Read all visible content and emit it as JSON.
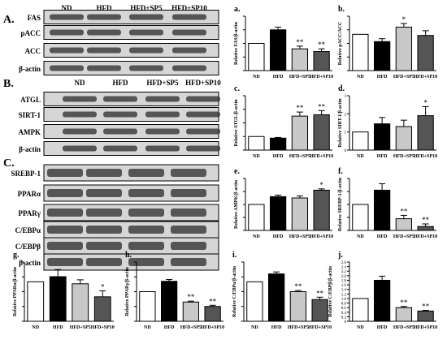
{
  "panel_letters": {
    "A": "A.",
    "B": "B.",
    "C": "C."
  },
  "lane_labels": [
    "ND",
    "HFD",
    "HFD+SP5",
    "HFD+SP10"
  ],
  "blots": {
    "A": [
      "FAS",
      "pACC",
      "ACC",
      "β-actin"
    ],
    "B": [
      "ATGL",
      "SIRT-1",
      "AMPK",
      "β-actin"
    ],
    "C": [
      "SREBP-1",
      "PPARα",
      "PPARγ",
      "C/EBPα",
      "C/EBPβ",
      "β-actin"
    ]
  },
  "colors": {
    "ND": "#ffffff",
    "HFD": "#000000",
    "HFD+SP5": "#c8c8c8",
    "HFD+SP10": "#555555",
    "blot_bg": "#d6d6d6",
    "band": "#2a2a2a"
  },
  "chart_data": [
    {
      "letter": "a.",
      "type": "bar",
      "ylabel": "Relative FAS/β-actin",
      "categories": [
        "ND",
        "HFD",
        "HFD+SP5",
        "HFD+SP10"
      ],
      "values": [
        1.0,
        1.5,
        0.8,
        0.7
      ],
      "errors": [
        0.0,
        0.1,
        0.1,
        0.1
      ],
      "significance": [
        "",
        "",
        "**",
        "**"
      ],
      "ylim": [
        0,
        2
      ],
      "yticks": []
    },
    {
      "letter": "b.",
      "type": "bar",
      "ylabel": "Relative pACC/ACC",
      "categories": [
        "ND",
        "HFD",
        "HFD+SP5",
        "HFD+SP10"
      ],
      "values": [
        1.0,
        0.8,
        1.2,
        0.97
      ],
      "errors": [
        0.0,
        0.08,
        0.1,
        0.13
      ],
      "significance": [
        "",
        "",
        "*",
        ""
      ],
      "ylim": [
        0,
        1.5
      ],
      "yticks": []
    },
    {
      "letter": "c.",
      "type": "bar",
      "ylabel": "Relative ATGL/β-actin",
      "categories": [
        "ND",
        "HFD",
        "HFD+SP5",
        "HFD+SP10"
      ],
      "values": [
        1.0,
        0.88,
        2.5,
        2.6
      ],
      "errors": [
        0.0,
        0.05,
        0.3,
        0.3
      ],
      "significance": [
        "",
        "",
        "**",
        "**"
      ],
      "ylim": [
        0,
        4
      ],
      "yticks": []
    },
    {
      "letter": "d.",
      "type": "bar",
      "ylabel": "Relative SIRT-1/β-actin",
      "categories": [
        "ND",
        "HFD",
        "HFD+SP5",
        "HFD+SP10"
      ],
      "values": [
        1.0,
        1.45,
        1.3,
        1.9
      ],
      "errors": [
        0.0,
        0.35,
        0.35,
        0.5
      ],
      "significance": [
        "",
        "",
        "",
        "*"
      ],
      "ylim": [
        0,
        3
      ],
      "yticks": [
        "0",
        "1",
        "2",
        "3"
      ]
    },
    {
      "letter": "e.",
      "type": "bar",
      "ylabel": "Relative AMPK/β-actin",
      "categories": [
        "ND",
        "HFD",
        "HFD+SP5",
        "HFD+SP10"
      ],
      "values": [
        1.0,
        1.3,
        1.25,
        1.55
      ],
      "errors": [
        0.0,
        0.06,
        0.08,
        0.05
      ],
      "significance": [
        "",
        "",
        "",
        "*"
      ],
      "ylim": [
        0,
        2
      ],
      "yticks": []
    },
    {
      "letter": "f.",
      "type": "bar",
      "ylabel": "Relative SREBP-1/β-actin",
      "categories": [
        "ND",
        "HFD",
        "HFD+SP5",
        "HFD+SP10"
      ],
      "values": [
        1.0,
        1.55,
        0.45,
        0.15
      ],
      "errors": [
        0.0,
        0.25,
        0.13,
        0.1
      ],
      "significance": [
        "",
        "",
        "**",
        "**"
      ],
      "ylim": [
        0,
        2
      ],
      "yticks": []
    },
    {
      "letter": "g.",
      "type": "bar",
      "ylabel": "Relative PPARα/β-actin",
      "categories": [
        "ND",
        "HFD",
        "HFD+SP5",
        "HFD+SP10"
      ],
      "values": [
        1.0,
        1.13,
        0.95,
        0.62
      ],
      "errors": [
        0.0,
        0.18,
        0.1,
        0.15
      ],
      "significance": [
        "",
        "",
        "",
        "*"
      ],
      "ylim": [
        0,
        1.5
      ],
      "yticks": []
    },
    {
      "letter": "h.",
      "type": "bar",
      "ylabel": "Relative PPARγ/β-actin",
      "categories": [
        "ND",
        "HFD",
        "HFD+SP5",
        "HFD+SP10"
      ],
      "values": [
        1.0,
        1.35,
        0.65,
        0.5
      ],
      "errors": [
        0.0,
        0.06,
        0.03,
        0.04
      ],
      "significance": [
        "",
        "",
        "**",
        "**"
      ],
      "ylim": [
        0,
        2
      ],
      "yticks": []
    },
    {
      "letter": "i.",
      "type": "bar",
      "ylabel": "Relative C/EBPα/β-actin",
      "categories": [
        "ND",
        "HFD",
        "HFD+SP5",
        "HFD+SP10"
      ],
      "values": [
        1.0,
        1.2,
        0.75,
        0.55
      ],
      "errors": [
        0.0,
        0.05,
        0.03,
        0.06
      ],
      "significance": [
        "",
        "",
        "**",
        "**"
      ],
      "ylim": [
        0,
        1.5
      ],
      "yticks": []
    },
    {
      "letter": "j.",
      "type": "bar",
      "ylabel": "Relative C/EBPβ/β-actin",
      "categories": [
        "ND",
        "HFD",
        "HFD+SP5",
        "HFD+SP10"
      ],
      "values": [
        1.0,
        1.8,
        0.6,
        0.45
      ],
      "errors": [
        0.0,
        0.18,
        0.05,
        0.03
      ],
      "significance": [
        "",
        "",
        "**",
        "**"
      ],
      "ylim": [
        0,
        2.6
      ],
      "yticks": [
        "0",
        "0.2",
        "0.4",
        "0.6",
        "0.8",
        "1.0",
        "1.2",
        "1.4",
        "1.6",
        "1.8",
        "2.0",
        "2.2",
        "2.4",
        "2.6"
      ]
    }
  ]
}
